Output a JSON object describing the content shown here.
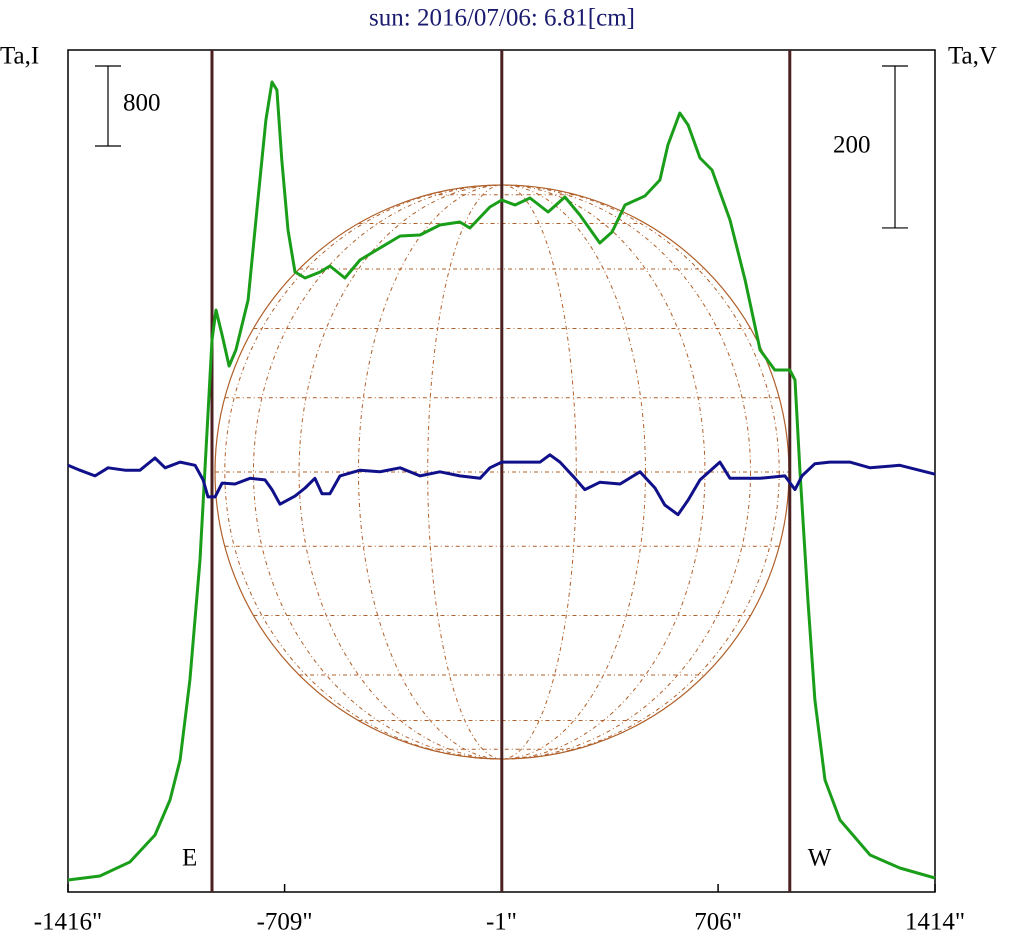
{
  "chart_data": {
    "type": "line",
    "title": "sun: 2016/07/06: 6.81[cm]",
    "ylabel": "Ta,I",
    "y2label": "Ta,V",
    "xlim": [
      -1416,
      1414
    ],
    "xticks": [
      {
        "value": -1416,
        "label": "-1416\""
      },
      {
        "value": -709,
        "label": "-709\""
      },
      {
        "value": -1,
        "label": "-1\""
      },
      {
        "value": 706,
        "label": "706\""
      },
      {
        "value": 1414,
        "label": "1414\""
      }
    ],
    "ylim": [
      0,
      8420
    ],
    "y2lim": [
      -525,
      515
    ],
    "scale_bars": [
      {
        "value": 800,
        "axis": "y"
      },
      {
        "value": 200,
        "axis": "y2"
      }
    ],
    "markers": [
      -946,
      0,
      940
    ],
    "limb_labels": [
      "E",
      "W"
    ],
    "series": [
      {
        "name": "Ta,I",
        "color": "#1a9e1a",
        "axis": "y",
        "x": [
          -1416,
          -1312,
          -1214,
          -1132,
          -1083,
          -1050,
          -1018,
          -985,
          -962,
          -946,
          -933,
          -913,
          -890,
          -868,
          -828,
          -796,
          -770,
          -750,
          -734,
          -718,
          -698,
          -675,
          -642,
          -593,
          -561,
          -512,
          -463,
          -398,
          -332,
          -267,
          -202,
          -137,
          -104,
          -39,
          0,
          43,
          92,
          151,
          206,
          255,
          320,
          360,
          402,
          467,
          516,
          542,
          581,
          608,
          647,
          686,
          745,
          794,
          843,
          891,
          940,
          957,
          973,
          999,
          1022,
          1055,
          1104,
          1202,
          1299,
          1414
        ],
        "values": [
          120,
          160,
          300,
          570,
          920,
          1320,
          2120,
          3320,
          4620,
          5520,
          5820,
          5570,
          5260,
          5420,
          5920,
          6920,
          7720,
          8100,
          8020,
          7320,
          6620,
          6200,
          6140,
          6200,
          6260,
          6140,
          6320,
          6440,
          6560,
          6570,
          6670,
          6700,
          6640,
          6850,
          6920,
          6870,
          6940,
          6800,
          6950,
          6770,
          6490,
          6600,
          6870,
          6960,
          7120,
          7470,
          7790,
          7670,
          7340,
          7220,
          6720,
          6120,
          5420,
          5220,
          5220,
          5120,
          4220,
          2920,
          1920,
          1120,
          720,
          370,
          240,
          140
        ]
      },
      {
        "name": "Ta,V",
        "color": "#10108a",
        "axis": "y2",
        "x": [
          -1416,
          -1377,
          -1328,
          -1285,
          -1230,
          -1181,
          -1132,
          -1099,
          -1050,
          -1001,
          -975,
          -959,
          -936,
          -913,
          -871,
          -822,
          -773,
          -750,
          -724,
          -675,
          -642,
          -610,
          -587,
          -561,
          -528,
          -463,
          -398,
          -332,
          -267,
          -202,
          -137,
          -71,
          -39,
          0,
          59,
          125,
          157,
          190,
          239,
          271,
          320,
          386,
          451,
          500,
          532,
          575,
          608,
          647,
          712,
          745,
          843,
          924,
          957,
          980,
          1022,
          1071,
          1136,
          1202,
          1299,
          1414
        ],
        "values": [
          2,
          -4,
          -11,
          -1,
          -4,
          -4,
          11,
          -1,
          6,
          2,
          -16,
          -37,
          -37,
          -20,
          -21,
          -14,
          -16,
          -28,
          -46,
          -36,
          -26,
          -14,
          -33,
          -33,
          -11,
          -4,
          -6,
          -1,
          -11,
          -6,
          -11,
          -14,
          -1,
          6,
          6,
          6,
          15,
          6,
          -14,
          -28,
          -19,
          -21,
          -6,
          -26,
          -47,
          -59,
          -41,
          -16,
          6,
          -14,
          -14,
          -11,
          -28,
          -11,
          4,
          6,
          6,
          -1,
          2,
          -9
        ]
      }
    ]
  }
}
